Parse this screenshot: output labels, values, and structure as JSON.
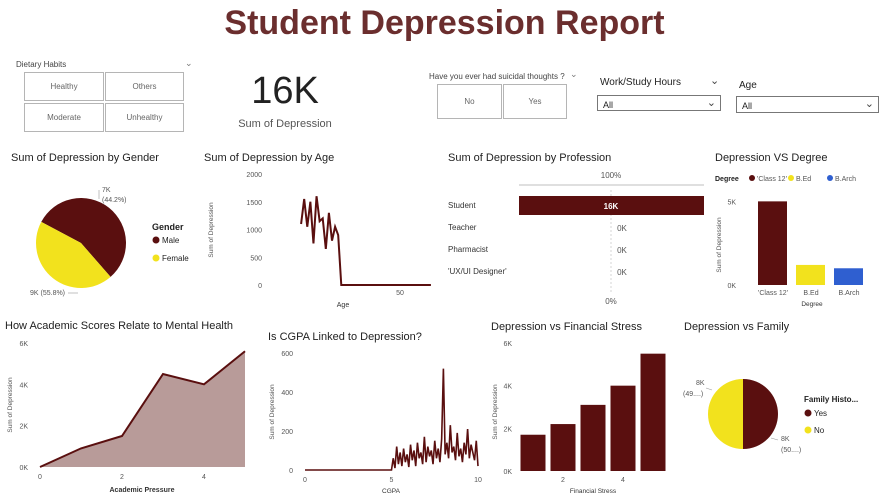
{
  "title": "Student Depression Report",
  "slicers": {
    "dietary": {
      "label": "Dietary Habits",
      "options": [
        "Healthy",
        "Others",
        "Moderate",
        "Unhealthy"
      ]
    },
    "suicidal": {
      "label": "Have you ever had suicidal thoughts ?",
      "options": [
        "No",
        "Yes"
      ]
    },
    "work_hours": {
      "label": "Work/Study Hours",
      "value": "All"
    },
    "age": {
      "label": "Age",
      "value": "All"
    }
  },
  "kpi": {
    "value": "16K",
    "label": "Sum of Depression"
  },
  "chart_data": [
    {
      "id": "gender",
      "type": "pie",
      "title": "Sum of Depression by Gender",
      "legend_title": "Gender",
      "categories": [
        "Male",
        "Female"
      ],
      "values": [
        8930,
        7070
      ],
      "labels": [
        "9K (55.8%)",
        "7K (44.2%)"
      ],
      "colors": [
        "#5a0f0f",
        "#f2e21d"
      ]
    },
    {
      "id": "age",
      "type": "line",
      "title": "Sum of Depression by Age",
      "xlabel": "Age",
      "ylabel": "Sum of Depression",
      "ylim": [
        0,
        2000
      ],
      "yticks": [
        0,
        500,
        1000,
        1500,
        2000
      ],
      "xlim": [
        17,
        61
      ],
      "xticks": [
        50
      ],
      "x": [
        18,
        19,
        20,
        21,
        22,
        23,
        24,
        25,
        26,
        27,
        28,
        29,
        30,
        31,
        32,
        33,
        34,
        35,
        36,
        38,
        40,
        45,
        50,
        55,
        60
      ],
      "y": [
        1100,
        1550,
        1050,
        1500,
        750,
        1600,
        1150,
        1200,
        650,
        1300,
        800,
        1050,
        900,
        0,
        0,
        0,
        0,
        0,
        0,
        0,
        0,
        0,
        0,
        0,
        0
      ]
    },
    {
      "id": "profession",
      "type": "bar",
      "orientation": "horizontal",
      "title": "Sum of Depression by Profession",
      "top_label": "100%",
      "bottom_label": "0%",
      "categories": [
        "Student",
        "Teacher",
        "Pharmacist",
        "'UX/UI Designer'"
      ],
      "values": [
        16000,
        0,
        0,
        0
      ],
      "data_labels": [
        "16K",
        "0K",
        "0K",
        "0K"
      ]
    },
    {
      "id": "degree",
      "type": "bar",
      "title": "Depression VS Degree",
      "legend_title": "Degree",
      "categories": [
        "'Class 12'",
        "B.Ed",
        "B.Arch"
      ],
      "values": [
        5000,
        1200,
        1000
      ],
      "colors": [
        "#5a0f0f",
        "#f2e21d",
        "#2f5fd0"
      ],
      "xlabel": "Degree",
      "ylabel": "Sum of Depression",
      "ylim": [
        0,
        5500
      ],
      "yticks": [
        0,
        5000
      ],
      "ytick_labels": [
        "0K",
        "5K"
      ]
    },
    {
      "id": "academic",
      "type": "area",
      "title": "How Academic Scores Relate to Mental Health",
      "xlabel": "Academic Pressure",
      "ylabel": "Sum of Depression",
      "x": [
        0,
        1,
        2,
        3,
        4,
        5
      ],
      "y": [
        0,
        900,
        1500,
        4500,
        4000,
        5600
      ],
      "xlim": [
        0,
        5
      ],
      "ylim": [
        0,
        6000
      ],
      "xticks": [
        0,
        2,
        4
      ],
      "yticks": [
        0,
        2000,
        4000,
        6000
      ],
      "ytick_labels": [
        "0K",
        "2K",
        "4K",
        "6K"
      ]
    },
    {
      "id": "cgpa",
      "type": "line",
      "title": "Is CGPA Linked to Depression?",
      "xlabel": "CGPA",
      "ylabel": "Sum of Depression",
      "xlim": [
        0,
        10
      ],
      "ylim": [
        0,
        600
      ],
      "xticks": [
        0,
        5,
        10
      ],
      "yticks": [
        0,
        200,
        400,
        600
      ],
      "x": [
        0,
        5.0,
        5.1,
        5.2,
        5.3,
        5.4,
        5.5,
        5.6,
        5.7,
        5.8,
        5.9,
        6.0,
        6.1,
        6.2,
        6.3,
        6.4,
        6.5,
        6.6,
        6.7,
        6.8,
        6.9,
        7.0,
        7.1,
        7.2,
        7.3,
        7.4,
        7.5,
        7.6,
        7.7,
        7.8,
        7.9,
        8.0,
        8.1,
        8.2,
        8.3,
        8.4,
        8.5,
        8.6,
        8.7,
        8.8,
        8.9,
        9.0,
        9.1,
        9.2,
        9.3,
        9.4,
        9.5,
        9.6,
        9.7,
        9.8,
        9.9,
        10.0
      ],
      "y": [
        0,
        0,
        60,
        10,
        120,
        30,
        90,
        20,
        110,
        40,
        80,
        15,
        130,
        50,
        100,
        20,
        140,
        60,
        90,
        30,
        170,
        40,
        120,
        70,
        100,
        30,
        150,
        60,
        110,
        40,
        160,
        520,
        80,
        140,
        60,
        230,
        90,
        120,
        50,
        190,
        70,
        110,
        40,
        140,
        80,
        210,
        60,
        130,
        90,
        50,
        150,
        20
      ]
    },
    {
      "id": "financial",
      "type": "bar",
      "title": "Depression vs Financial Stress",
      "xlabel": "Financial Stress",
      "ylabel": "Sum of Depression",
      "x": [
        1,
        2,
        3,
        4,
        5
      ],
      "values": [
        1700,
        2200,
        3100,
        4000,
        5500
      ],
      "xlim": [
        0.5,
        5.5
      ],
      "xticks": [
        2,
        4
      ],
      "ylim": [
        0,
        6000
      ],
      "yticks": [
        0,
        2000,
        4000,
        6000
      ],
      "ytick_labels": [
        "0K",
        "2K",
        "4K",
        "6K"
      ]
    },
    {
      "id": "family",
      "type": "pie",
      "title": "Depression vs Family",
      "legend_title": "Family Histo...",
      "categories": [
        "Yes",
        "No"
      ],
      "values": [
        8000,
        8000
      ],
      "labels": [
        "8K (50....)",
        "8K (49....)"
      ],
      "colors": [
        "#5a0f0f",
        "#f2e21d"
      ]
    }
  ]
}
